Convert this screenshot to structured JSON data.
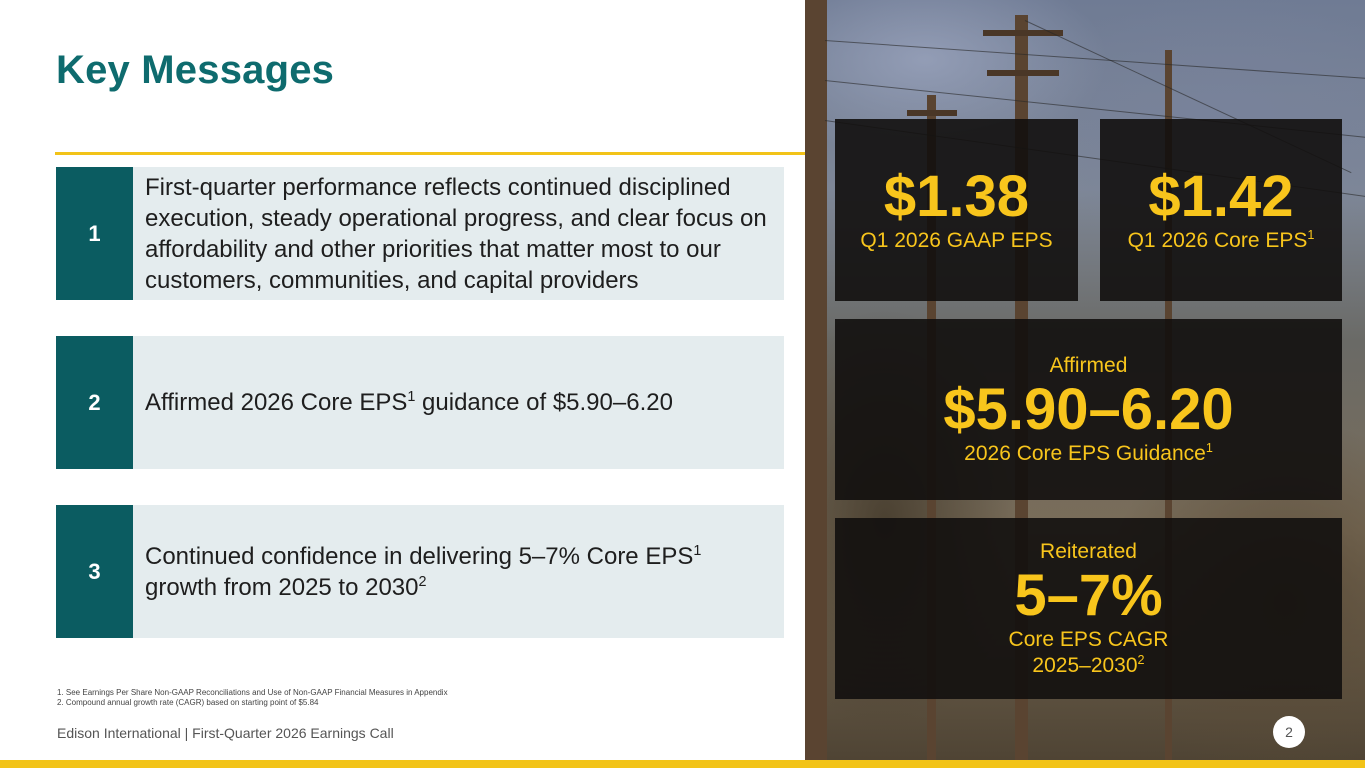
{
  "title": "Key Messages",
  "messages": [
    {
      "num": "1",
      "text": "First-quarter performance reflects continued disciplined execution, steady operational progress, and clear focus on affordability and other priorities that matter most to our customers, communities, and capital providers"
    },
    {
      "num": "2",
      "text_a": "Affirmed 2026 Core EPS",
      "sup_a": "1",
      "text_b": " guidance of $5.90–6.20"
    },
    {
      "num": "3",
      "text_a": "Continued confidence in delivering 5–7% Core EPS",
      "sup_a": "1",
      "text_b": " growth from 2025 to 2030",
      "sup_b": "2"
    }
  ],
  "cards": {
    "gaap": {
      "value": "$1.38",
      "label": "Q1 2026 GAAP EPS"
    },
    "core": {
      "value": "$1.42",
      "label": "Q1 2026 Core EPS",
      "sup": "1"
    },
    "guidance": {
      "top": "Affirmed",
      "value": "$5.90–6.20",
      "label": "2026 Core EPS Guidance",
      "sup": "1"
    },
    "cagr": {
      "top": "Reiterated",
      "value": "5–7%",
      "label_1": "Core EPS CAGR",
      "label_2": "2025–2030",
      "sup": "2"
    }
  },
  "footnotes": [
    "1.  See Earnings Per Share Non-GAAP Reconciliations and Use of Non-GAAP Financial Measures in Appendix",
    "2.  Compound annual growth rate (CAGR) based on starting point of $5.84"
  ],
  "footer": "Edison International |  First-Quarter 2026 Earnings Call",
  "page_number": "2",
  "colors": {
    "teal": "#0e6b6e",
    "teal_dark": "#0b5c61",
    "gold": "#f2c318",
    "card_text": "#f8c51c"
  }
}
